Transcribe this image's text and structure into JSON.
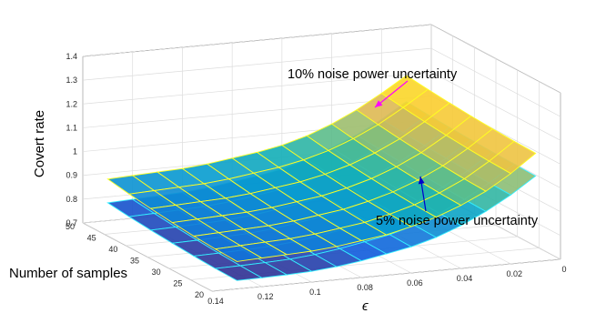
{
  "chart_data": {
    "type": "surface",
    "xlabel": "ϵ",
    "ylabel": "Number of samples",
    "zlabel": "Covert rate",
    "x_ticks": [
      "0",
      "0.02",
      "0.04",
      "0.06",
      "0.08",
      "0.1",
      "0.12",
      "0.14"
    ],
    "y_ticks": [
      "20",
      "25",
      "30",
      "35",
      "40",
      "45",
      "50"
    ],
    "z_ticks": [
      "0.7",
      "0.8",
      "0.9",
      "1",
      "1.1",
      "1.2",
      "1.3",
      "1.4"
    ],
    "xlim": [
      0,
      0.14
    ],
    "ylim": [
      20,
      50
    ],
    "zlim": [
      0.7,
      1.4
    ],
    "grid": true,
    "x_grid": [
      0.01,
      0.02,
      0.03,
      0.04,
      0.05,
      0.06,
      0.07,
      0.08,
      0.09,
      0.1,
      0.11,
      0.12,
      0.13
    ],
    "y_grid": [
      20,
      25,
      30,
      35,
      40,
      45,
      50
    ],
    "series": [
      {
        "name": "10% noise power uncertainty",
        "edge_color": "#ffff22",
        "corner_values": {
          "eps_0.01_n20": 1.155,
          "eps_0.01_n50": 1.195,
          "eps_0.13_n20": 0.815,
          "eps_0.13_n50": 0.875
        },
        "values_n50": [
          1.195,
          1.13,
          1.07,
          1.02,
          0.98,
          0.95,
          0.93,
          0.915,
          0.9,
          0.89,
          0.885,
          0.88,
          0.875
        ],
        "values_n20": [
          1.155,
          1.08,
          1.015,
          0.965,
          0.925,
          0.895,
          0.87,
          0.855,
          0.84,
          0.83,
          0.825,
          0.82,
          0.815
        ]
      },
      {
        "name": "5% noise power uncertainty",
        "edge_color": "#33eeff",
        "corner_values": {
          "eps_0.01_n20": 1.06,
          "eps_0.01_n50": 1.085,
          "eps_0.13_n20": 0.735,
          "eps_0.13_n50": 0.775
        },
        "values_n50": [
          1.085,
          1.02,
          0.965,
          0.92,
          0.88,
          0.85,
          0.83,
          0.815,
          0.8,
          0.79,
          0.785,
          0.78,
          0.775
        ],
        "values_n20": [
          1.06,
          0.99,
          0.93,
          0.88,
          0.84,
          0.81,
          0.79,
          0.77,
          0.755,
          0.745,
          0.74,
          0.737,
          0.735
        ]
      }
    ],
    "annotations": [
      {
        "text": "10% noise power uncertainty",
        "arrow_color": "#ff00ff"
      },
      {
        "text": "5% noise power uncertainty",
        "arrow_color": "#0000cc"
      }
    ]
  }
}
